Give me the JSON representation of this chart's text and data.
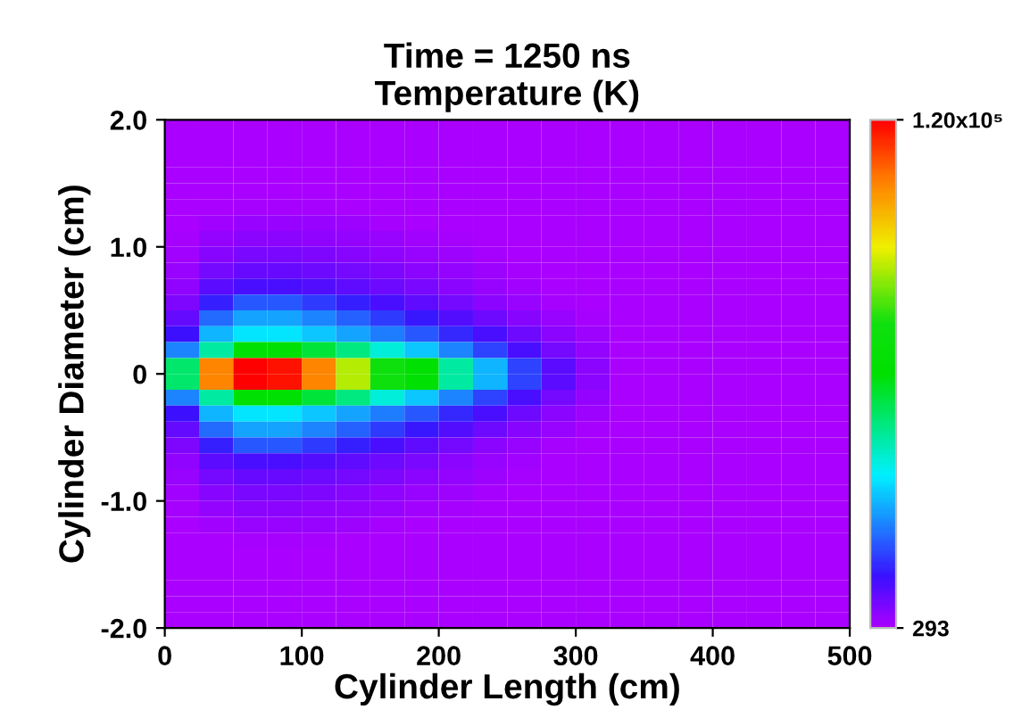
{
  "chart_data": {
    "type": "heatmap",
    "title": "Time = 1250 ns\nTemperature (K)",
    "xlabel": "Cylinder Length (cm)",
    "ylabel": "Cylinder Diameter (cm)",
    "xlim": [
      0,
      500
    ],
    "xticks": [
      0,
      100,
      200,
      300,
      400,
      500
    ],
    "ylim": [
      -2.0,
      2.0
    ],
    "yticks": [
      {
        "value": -2,
        "label": "-2.0"
      },
      {
        "value": -1,
        "label": "-1.0"
      },
      {
        "value": 0,
        "label": "0"
      },
      {
        "value": 1,
        "label": "1.0"
      },
      {
        "value": 2,
        "label": "2.0"
      }
    ],
    "clim": [
      293,
      120000
    ],
    "cticks": [
      {
        "value": 293,
        "label": "293"
      },
      {
        "value": 120000,
        "label": "1.20x10⁵"
      }
    ],
    "cells": [
      [
        293,
        293,
        293,
        293,
        293,
        293,
        293,
        293,
        293,
        293,
        293,
        293,
        293,
        293,
        293,
        293,
        293,
        293,
        293,
        293
      ],
      [
        293,
        293,
        293,
        293,
        293,
        293,
        293,
        293,
        293,
        293,
        293,
        293,
        293,
        293,
        293,
        293,
        293,
        293,
        293,
        293
      ],
      [
        293,
        293,
        293,
        293,
        293,
        293,
        293,
        293,
        293,
        293,
        293,
        293,
        293,
        293,
        293,
        293,
        293,
        293,
        293,
        293
      ],
      [
        293,
        293,
        293,
        293,
        293,
        293,
        293,
        293,
        293,
        293,
        293,
        293,
        293,
        293,
        293,
        293,
        293,
        293,
        293,
        293
      ],
      [
        293,
        293,
        293,
        293,
        293,
        293,
        293,
        293,
        293,
        293,
        293,
        293,
        293,
        293,
        293,
        293,
        293,
        293,
        293,
        293
      ],
      [
        293,
        293,
        1000,
        1000,
        800,
        500,
        293,
        293,
        293,
        293,
        293,
        293,
        293,
        293,
        293,
        293,
        293,
        293,
        293,
        293
      ],
      [
        293,
        1500,
        2500,
        2500,
        2200,
        1800,
        1200,
        700,
        293,
        293,
        293,
        293,
        293,
        293,
        293,
        293,
        293,
        293,
        293,
        293
      ],
      [
        800,
        3000,
        4000,
        4000,
        3500,
        3000,
        2200,
        1500,
        900,
        400,
        293,
        293,
        293,
        293,
        293,
        293,
        293,
        293,
        293,
        293
      ],
      [
        1500,
        4500,
        5500,
        5500,
        5000,
        4500,
        3500,
        2500,
        1800,
        1000,
        500,
        293,
        293,
        293,
        293,
        293,
        293,
        293,
        293,
        293
      ],
      [
        2500,
        6000,
        7500,
        7500,
        7000,
        6000,
        5000,
        4000,
        2800,
        1800,
        900,
        293,
        293,
        293,
        293,
        293,
        293,
        293,
        293,
        293
      ],
      [
        3500,
        9000,
        11000,
        11000,
        10000,
        8500,
        7000,
        5500,
        4000,
        2500,
        1500,
        700,
        293,
        293,
        293,
        293,
        293,
        293,
        293,
        293
      ],
      [
        5000,
        14000,
        20000,
        20000,
        17000,
        14000,
        11000,
        8500,
        6000,
        4000,
        2500,
        1200,
        293,
        293,
        293,
        293,
        293,
        293,
        293,
        293
      ],
      [
        8000,
        22000,
        28000,
        28000,
        25000,
        21000,
        17000,
        13000,
        10000,
        7000,
        4500,
        2500,
        1000,
        293,
        293,
        293,
        293,
        293,
        293,
        293
      ],
      [
        12000,
        30000,
        35000,
        35000,
        32000,
        28000,
        24000,
        20000,
        15000,
        11000,
        7000,
        4000,
        2000,
        293,
        293,
        293,
        293,
        293,
        293,
        293
      ],
      [
        25000,
        45000,
        60000,
        60000,
        55000,
        48000,
        40000,
        32000,
        25000,
        18000,
        11000,
        6000,
        3000,
        293,
        293,
        293,
        293,
        293,
        293,
        293
      ],
      [
        50000,
        105000,
        120000,
        118000,
        105000,
        85000,
        70000,
        60000,
        45000,
        30000,
        18000,
        9000,
        4000,
        293,
        293,
        293,
        293,
        293,
        293,
        293
      ],
      [
        50000,
        105000,
        120000,
        118000,
        105000,
        85000,
        70000,
        60000,
        45000,
        30000,
        18000,
        9000,
        4000,
        293,
        293,
        293,
        293,
        293,
        293,
        293
      ],
      [
        25000,
        45000,
        60000,
        60000,
        55000,
        48000,
        40000,
        32000,
        25000,
        18000,
        11000,
        6000,
        3000,
        293,
        293,
        293,
        293,
        293,
        293,
        293
      ],
      [
        12000,
        30000,
        35000,
        35000,
        32000,
        28000,
        24000,
        20000,
        15000,
        11000,
        7000,
        4000,
        2000,
        293,
        293,
        293,
        293,
        293,
        293,
        293
      ],
      [
        8000,
        22000,
        28000,
        28000,
        25000,
        21000,
        17000,
        13000,
        10000,
        7000,
        4500,
        2500,
        1000,
        293,
        293,
        293,
        293,
        293,
        293,
        293
      ],
      [
        5000,
        14000,
        20000,
        20000,
        17000,
        14000,
        11000,
        8500,
        6000,
        4000,
        2500,
        1200,
        293,
        293,
        293,
        293,
        293,
        293,
        293,
        293
      ],
      [
        3500,
        9000,
        11000,
        11000,
        10000,
        8500,
        7000,
        5500,
        4000,
        2500,
        1500,
        700,
        293,
        293,
        293,
        293,
        293,
        293,
        293,
        293
      ],
      [
        2500,
        6000,
        7500,
        7500,
        7000,
        6000,
        5000,
        4000,
        2800,
        1800,
        900,
        293,
        293,
        293,
        293,
        293,
        293,
        293,
        293,
        293
      ],
      [
        1500,
        4500,
        5500,
        5500,
        5000,
        4500,
        3500,
        2500,
        1800,
        1000,
        500,
        293,
        293,
        293,
        293,
        293,
        293,
        293,
        293,
        293
      ],
      [
        800,
        3000,
        4000,
        4000,
        3500,
        3000,
        2200,
        1500,
        900,
        400,
        293,
        293,
        293,
        293,
        293,
        293,
        293,
        293,
        293,
        293
      ],
      [
        293,
        1500,
        2500,
        2500,
        2200,
        1800,
        1200,
        700,
        293,
        293,
        293,
        293,
        293,
        293,
        293,
        293,
        293,
        293,
        293,
        293
      ],
      [
        293,
        293,
        1000,
        1000,
        800,
        500,
        293,
        293,
        293,
        293,
        293,
        293,
        293,
        293,
        293,
        293,
        293,
        293,
        293,
        293
      ],
      [
        293,
        293,
        293,
        293,
        293,
        293,
        293,
        293,
        293,
        293,
        293,
        293,
        293,
        293,
        293,
        293,
        293,
        293,
        293,
        293
      ],
      [
        293,
        293,
        293,
        293,
        293,
        293,
        293,
        293,
        293,
        293,
        293,
        293,
        293,
        293,
        293,
        293,
        293,
        293,
        293,
        293
      ],
      [
        293,
        293,
        293,
        293,
        293,
        293,
        293,
        293,
        293,
        293,
        293,
        293,
        293,
        293,
        293,
        293,
        293,
        293,
        293,
        293
      ],
      [
        293,
        293,
        293,
        293,
        293,
        293,
        293,
        293,
        293,
        293,
        293,
        293,
        293,
        293,
        293,
        293,
        293,
        293,
        293,
        293
      ],
      [
        293,
        293,
        293,
        293,
        293,
        293,
        293,
        293,
        293,
        293,
        293,
        293,
        293,
        293,
        293,
        293,
        293,
        293,
        293,
        293
      ]
    ]
  }
}
